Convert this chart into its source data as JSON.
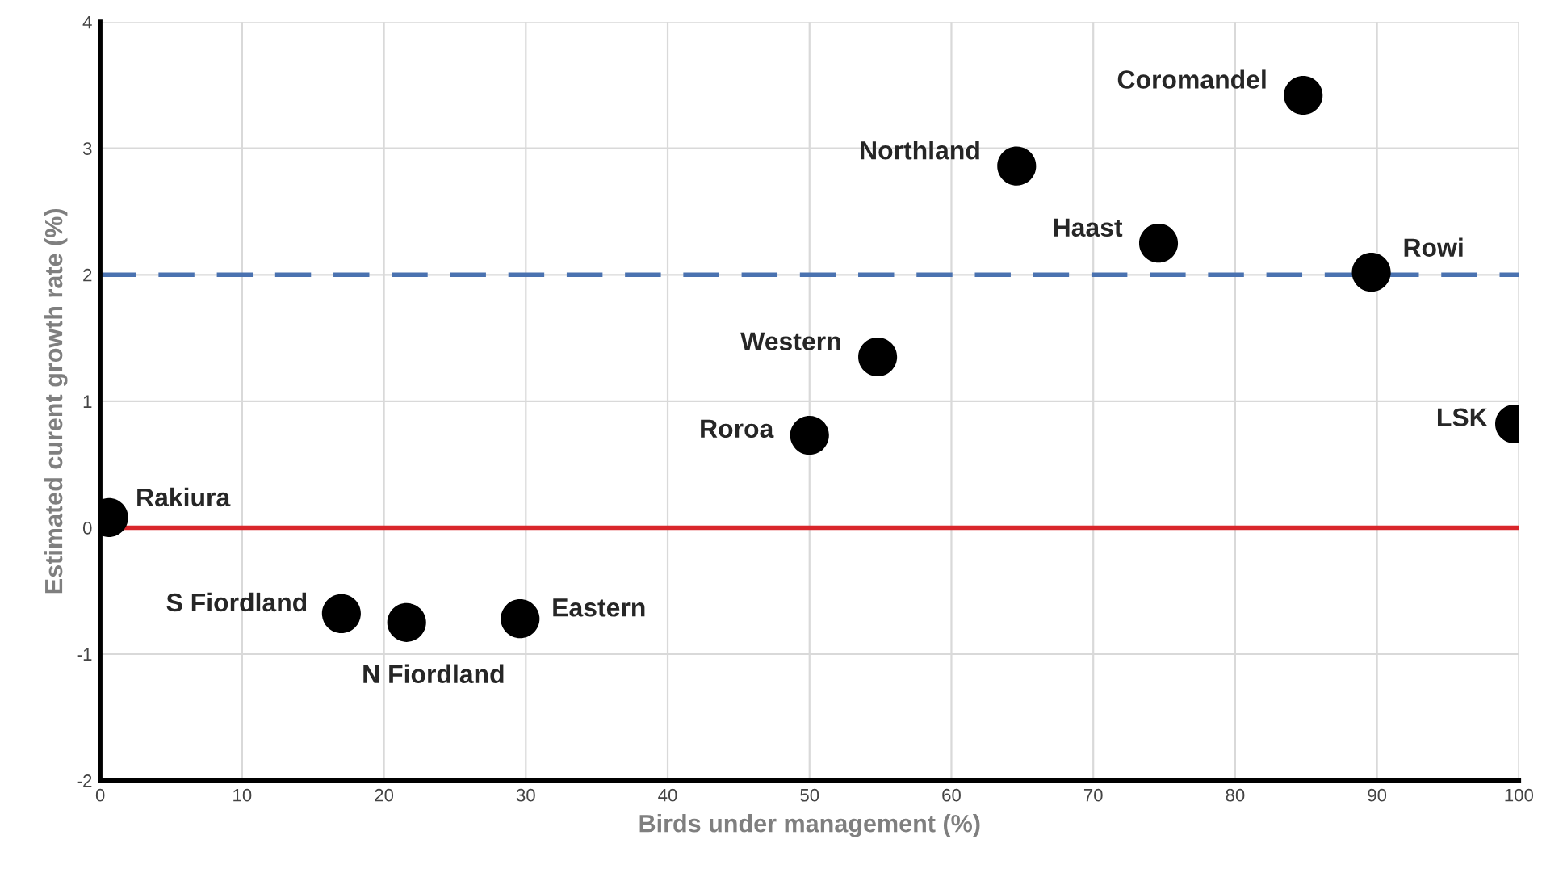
{
  "chart_data": {
    "type": "scatter",
    "xlabel": "Birds under management (%)",
    "ylabel": "Estimated curent growth rate (%)",
    "x": [
      0.6,
      17,
      21.6,
      29.6,
      50,
      54.8,
      64.6,
      74.6,
      84.8,
      89.6,
      99.7
    ],
    "series": [
      {
        "color": "#000000",
        "values": [
          0.08,
          -0.68,
          -0.75,
          -0.72,
          0.73,
          1.35,
          2.86,
          2.25,
          3.42,
          2.02,
          0.82
        ]
      }
    ],
    "annotations": [
      {
        "text": "Rakiura",
        "x": 0.6,
        "y": 0.08
      },
      {
        "text": "S Fiordland",
        "x": 17,
        "y": -0.68
      },
      {
        "text": "N Fiordland",
        "x": 21.6,
        "y": -0.75
      },
      {
        "text": "Eastern",
        "x": 29.6,
        "y": -0.72
      },
      {
        "text": "Roroa",
        "x": 50,
        "y": 0.73
      },
      {
        "text": "Western",
        "x": 54.8,
        "y": 1.35
      },
      {
        "text": "Northland",
        "x": 64.6,
        "y": 2.86
      },
      {
        "text": "Haast",
        "x": 74.6,
        "y": 2.25
      },
      {
        "text": "Coromandel",
        "x": 84.8,
        "y": 3.42
      },
      {
        "text": "Rowi",
        "x": 89.6,
        "y": 2.02
      },
      {
        "text": "LSK",
        "x": 99.7,
        "y": 0.82
      }
    ],
    "ref_lines": [
      {
        "axis": "y",
        "value": 2,
        "color": "#4a72b0",
        "line_style": "dashed"
      },
      {
        "axis": "y",
        "value": 0,
        "color": "#d9262b",
        "line_style": "solid"
      }
    ],
    "xlim": [
      0,
      100
    ],
    "ylim": [
      -2,
      4
    ],
    "xticks": [
      0,
      10,
      20,
      30,
      40,
      50,
      60,
      70,
      80,
      90,
      100
    ],
    "yticks": [
      -2,
      -1,
      0,
      1,
      2,
      3,
      4
    ],
    "grid": true,
    "marker": "circle",
    "legend": false
  }
}
